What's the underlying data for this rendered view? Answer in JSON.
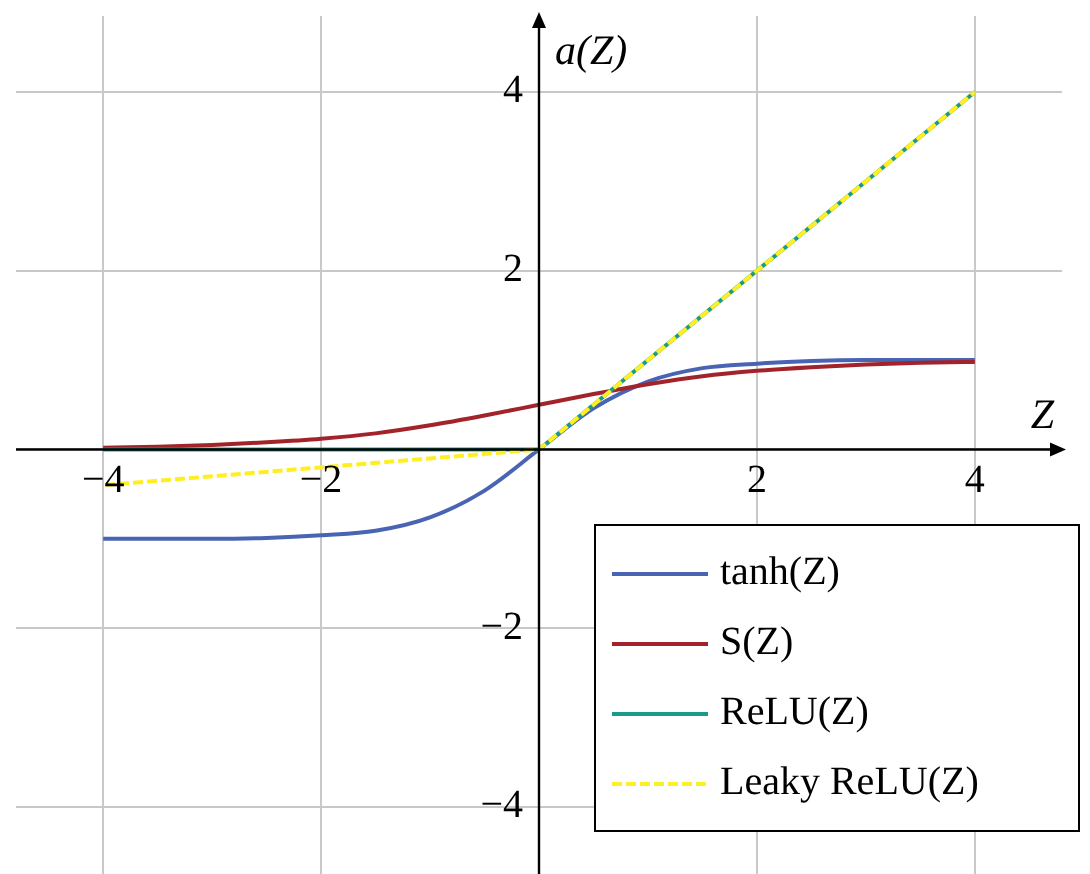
{
  "chart_data": {
    "type": "line",
    "xlabel": "Z",
    "ylabel": "a(Z)",
    "xlim": [
      -4.8,
      4.8
    ],
    "ylim": [
      -4.75,
      4.85
    ],
    "xticks": [
      -4,
      -2,
      {
        "value": 0,
        "label": null
      },
      2,
      4
    ],
    "yticks": [
      -4,
      -2,
      {
        "value": 0,
        "label": null
      },
      2,
      4
    ],
    "grid": true,
    "legend": "bottom right",
    "marker": "none",
    "series": [
      {
        "name": "tanh(Z)",
        "color": "#4a64b4",
        "x": [
          -4,
          -3.5,
          -3,
          -2.5,
          -2,
          -1.5,
          -1,
          -0.5,
          0,
          0.5,
          1,
          1.5,
          2,
          2.5,
          3,
          3.5,
          4
        ],
        "values": [
          -1.0,
          -1.0,
          -1.0,
          -0.99,
          -0.96,
          -0.91,
          -0.76,
          -0.46,
          0,
          0.46,
          0.76,
          0.91,
          0.96,
          0.99,
          1.0,
          1.0,
          1.0
        ]
      },
      {
        "name": "S(Z)",
        "color": "#a3232a",
        "x": [
          -4,
          -3.5,
          -3,
          -2.5,
          -2,
          -1.5,
          -1,
          -0.5,
          0,
          0.5,
          1,
          1.5,
          2,
          2.5,
          3,
          3.5,
          4
        ],
        "values": [
          0.02,
          0.03,
          0.05,
          0.08,
          0.12,
          0.18,
          0.27,
          0.38,
          0.5,
          0.62,
          0.73,
          0.82,
          0.88,
          0.92,
          0.95,
          0.97,
          0.98
        ]
      },
      {
        "name": "ReLU(Z)",
        "color": "#1a9a8a",
        "x": [
          -4,
          0,
          4
        ],
        "values": [
          0,
          0,
          4
        ]
      },
      {
        "name": "Leaky ReLU(Z)",
        "color": "#ffee22",
        "line_style": "dashed",
        "x": [
          -4,
          0,
          4
        ],
        "values": [
          -0.4,
          0,
          4
        ]
      }
    ]
  }
}
